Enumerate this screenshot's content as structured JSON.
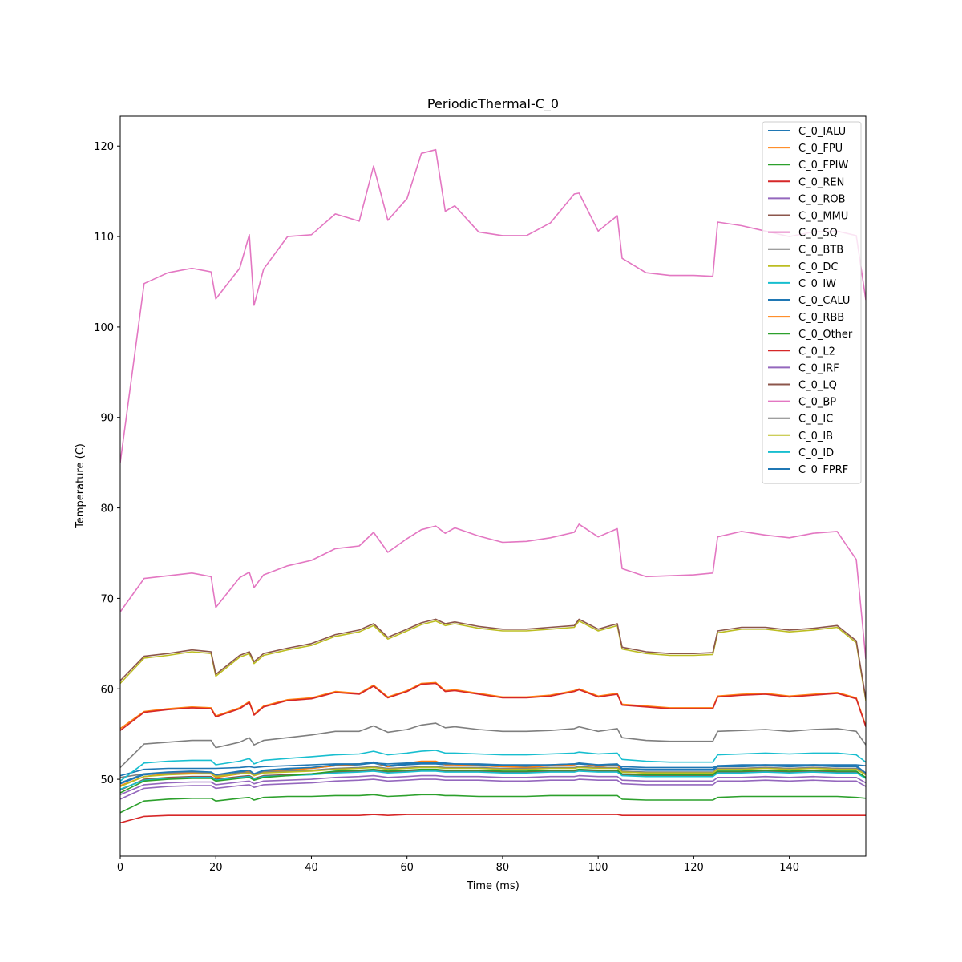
{
  "chart_data": {
    "type": "line",
    "title": "PeriodicThermal-C_0",
    "xlabel": "Time (ms)",
    "ylabel": "Temperature (C)",
    "xlim": [
      0,
      156
    ],
    "ylim": [
      41.5,
      123.3
    ],
    "xticks": [
      0,
      20,
      40,
      60,
      80,
      100,
      120,
      140
    ],
    "yticks": [
      50,
      60,
      70,
      80,
      90,
      100,
      110,
      120
    ],
    "grid": false,
    "legend_position": "top-right",
    "x": [
      0,
      5,
      10,
      15,
      19,
      20,
      25,
      27,
      28,
      30,
      35,
      40,
      45,
      50,
      53,
      56,
      60,
      63,
      66,
      68,
      70,
      75,
      80,
      85,
      90,
      95,
      96,
      100,
      104,
      105,
      110,
      115,
      120,
      124,
      125,
      130,
      135,
      140,
      145,
      150,
      154,
      156
    ],
    "series": [
      {
        "name": "C_0_IALU",
        "color": "#1f77b4",
        "values": [
          49.5,
          50.5,
          50.7,
          50.8,
          50.7,
          50.3,
          50.8,
          50.9,
          50.5,
          50.9,
          51.1,
          51.2,
          51.5,
          51.6,
          51.8,
          51.4,
          51.6,
          51.7,
          51.7,
          51.6,
          51.6,
          51.5,
          51.4,
          51.4,
          51.5,
          51.6,
          51.7,
          51.5,
          51.6,
          51.1,
          51.0,
          51.0,
          51.0,
          51.0,
          51.4,
          51.4,
          51.5,
          51.4,
          51.5,
          51.4,
          51.4,
          50.6
        ]
      },
      {
        "name": "C_0_FPU",
        "color": "#ff7f0e",
        "values": [
          49.3,
          50.3,
          50.6,
          50.7,
          50.6,
          50.2,
          50.6,
          50.9,
          50.4,
          50.8,
          51.0,
          51.2,
          51.5,
          51.7,
          51.9,
          51.4,
          51.8,
          52.0,
          52.0,
          51.6,
          51.6,
          51.5,
          51.4,
          51.3,
          51.5,
          51.6,
          51.8,
          51.4,
          51.6,
          50.8,
          50.7,
          50.6,
          50.6,
          50.6,
          51.2,
          51.2,
          51.3,
          51.2,
          51.3,
          51.2,
          51.1,
          50.5
        ]
      },
      {
        "name": "C_0_FPIW",
        "color": "#2ca02c",
        "values": [
          46.3,
          47.6,
          47.8,
          47.9,
          47.9,
          47.6,
          47.9,
          48.0,
          47.7,
          48.0,
          48.1,
          48.1,
          48.2,
          48.2,
          48.3,
          48.1,
          48.2,
          48.3,
          48.3,
          48.2,
          48.2,
          48.1,
          48.1,
          48.1,
          48.2,
          48.2,
          48.2,
          48.2,
          48.2,
          47.8,
          47.7,
          47.7,
          47.7,
          47.7,
          48.0,
          48.1,
          48.1,
          48.1,
          48.1,
          48.1,
          48.0,
          47.9
        ]
      },
      {
        "name": "C_0_REN",
        "color": "#d62728",
        "values": [
          45.2,
          45.9,
          46.0,
          46.0,
          46.0,
          46.0,
          46.0,
          46.0,
          46.0,
          46.0,
          46.0,
          46.0,
          46.0,
          46.0,
          46.1,
          46.0,
          46.1,
          46.1,
          46.1,
          46.1,
          46.1,
          46.1,
          46.1,
          46.1,
          46.1,
          46.1,
          46.1,
          46.1,
          46.1,
          46.0,
          46.0,
          46.0,
          46.0,
          46.0,
          46.0,
          46.0,
          46.0,
          46.0,
          46.0,
          46.0,
          46.0,
          46.0
        ]
      },
      {
        "name": "C_0_ROB",
        "color": "#9467bd",
        "values": [
          48.3,
          49.4,
          49.6,
          49.7,
          49.7,
          49.4,
          49.7,
          49.8,
          49.5,
          49.8,
          49.9,
          50.0,
          50.2,
          50.3,
          50.4,
          50.2,
          50.3,
          50.4,
          50.4,
          50.3,
          50.3,
          50.3,
          50.2,
          50.2,
          50.3,
          50.3,
          50.4,
          50.3,
          50.3,
          49.9,
          49.8,
          49.8,
          49.8,
          49.8,
          50.2,
          50.2,
          50.3,
          50.2,
          50.3,
          50.2,
          50.2,
          49.6
        ]
      },
      {
        "name": "C_0_MMU",
        "color": "#8c564b",
        "values": [
          48.8,
          50.0,
          50.2,
          50.3,
          50.3,
          50.0,
          50.3,
          50.4,
          50.1,
          50.4,
          50.5,
          50.6,
          50.8,
          50.9,
          51.0,
          50.8,
          50.9,
          51.0,
          51.0,
          50.9,
          50.9,
          50.9,
          50.8,
          50.8,
          50.9,
          50.9,
          51.0,
          50.9,
          50.9,
          50.5,
          50.4,
          50.4,
          50.4,
          50.4,
          50.8,
          50.8,
          50.9,
          50.8,
          50.9,
          50.8,
          50.8,
          50.2
        ]
      },
      {
        "name": "C_0_SQ",
        "color": "#e377c2",
        "values": [
          68.5,
          72.2,
          72.5,
          72.8,
          72.4,
          69.0,
          72.3,
          72.9,
          71.2,
          72.6,
          73.6,
          74.2,
          75.5,
          75.8,
          77.3,
          75.1,
          76.6,
          77.6,
          78.0,
          77.2,
          77.8,
          76.9,
          76.2,
          76.3,
          76.7,
          77.3,
          78.2,
          76.8,
          77.7,
          73.3,
          72.4,
          72.5,
          72.6,
          72.8,
          76.8,
          77.4,
          77.0,
          76.7,
          77.2,
          77.4,
          74.3,
          63.3
        ]
      },
      {
        "name": "C_0_BTB",
        "color": "#7f7f7f",
        "values": [
          50.2,
          50.6,
          50.7,
          50.8,
          50.7,
          50.4,
          50.7,
          50.8,
          50.5,
          50.8,
          50.9,
          51.0,
          51.2,
          51.3,
          51.4,
          51.2,
          51.3,
          51.4,
          51.4,
          51.3,
          51.3,
          51.3,
          51.2,
          51.2,
          51.3,
          51.3,
          51.4,
          51.3,
          51.3,
          50.9,
          50.8,
          50.8,
          50.8,
          50.8,
          51.2,
          51.2,
          51.3,
          51.2,
          51.3,
          51.2,
          51.2,
          50.6
        ]
      },
      {
        "name": "C_0_DC",
        "color": "#bcbd22",
        "values": [
          60.6,
          63.4,
          63.7,
          64.1,
          63.9,
          61.4,
          63.5,
          63.9,
          62.8,
          63.7,
          64.3,
          64.8,
          65.8,
          66.3,
          67.0,
          65.5,
          66.4,
          67.1,
          67.5,
          67.0,
          67.2,
          66.7,
          66.4,
          66.4,
          66.6,
          66.8,
          67.5,
          66.4,
          67.0,
          64.4,
          63.9,
          63.7,
          63.7,
          63.8,
          66.2,
          66.6,
          66.6,
          66.3,
          66.5,
          66.8,
          65.1,
          58.7
        ]
      },
      {
        "name": "C_0_IW",
        "color": "#17becf",
        "values": [
          48.9,
          49.9,
          50.1,
          50.2,
          50.2,
          49.9,
          50.2,
          50.3,
          50.0,
          50.3,
          50.4,
          50.5,
          50.7,
          50.8,
          50.9,
          50.7,
          50.8,
          50.9,
          50.9,
          50.8,
          50.8,
          50.8,
          50.7,
          50.7,
          50.8,
          50.8,
          50.9,
          50.8,
          50.8,
          50.4,
          50.3,
          50.3,
          50.3,
          50.3,
          50.7,
          50.7,
          50.8,
          50.7,
          50.8,
          50.7,
          50.7,
          50.1
        ]
      },
      {
        "name": "C_0_CALU",
        "color": "#1f77b4",
        "values": [
          50.4,
          51.1,
          51.2,
          51.2,
          51.2,
          51.2,
          51.3,
          51.4,
          51.3,
          51.4,
          51.5,
          51.6,
          51.7,
          51.7,
          51.8,
          51.7,
          51.8,
          51.8,
          51.8,
          51.8,
          51.7,
          51.7,
          51.6,
          51.6,
          51.6,
          51.7,
          51.7,
          51.6,
          51.6,
          51.4,
          51.3,
          51.3,
          51.3,
          51.3,
          51.5,
          51.6,
          51.6,
          51.6,
          51.6,
          51.6,
          51.6,
          51.5
        ]
      },
      {
        "name": "C_0_RBB",
        "color": "#ff7f0e",
        "values": [
          55.6,
          57.5,
          57.8,
          58.0,
          57.9,
          57.0,
          57.9,
          58.6,
          57.2,
          58.1,
          58.8,
          59.0,
          59.7,
          59.5,
          60.4,
          59.1,
          59.8,
          60.6,
          60.7,
          59.8,
          59.9,
          59.5,
          59.1,
          59.1,
          59.3,
          59.8,
          60.0,
          59.2,
          59.5,
          58.3,
          58.1,
          57.9,
          57.9,
          57.9,
          59.2,
          59.4,
          59.5,
          59.2,
          59.4,
          59.6,
          59.0,
          55.9
        ]
      },
      {
        "name": "C_0_Other",
        "color": "#2ca02c",
        "values": [
          48.5,
          49.8,
          50.0,
          50.1,
          50.1,
          49.8,
          50.1,
          50.2,
          49.9,
          50.2,
          50.4,
          50.6,
          50.9,
          51.0,
          51.1,
          50.9,
          51.0,
          51.1,
          51.1,
          51.0,
          51.0,
          51.0,
          50.9,
          50.9,
          51.0,
          51.0,
          51.1,
          51.0,
          51.0,
          50.6,
          50.5,
          50.5,
          50.5,
          50.5,
          50.9,
          50.9,
          51.0,
          50.9,
          51.0,
          50.9,
          50.9,
          50.2
        ]
      },
      {
        "name": "C_0_L2",
        "color": "#d62728",
        "values": [
          55.4,
          57.4,
          57.7,
          57.9,
          57.8,
          56.9,
          57.8,
          58.5,
          57.1,
          58.0,
          58.7,
          58.9,
          59.6,
          59.4,
          60.3,
          59.0,
          59.7,
          60.5,
          60.6,
          59.7,
          59.8,
          59.4,
          59.0,
          59.0,
          59.2,
          59.7,
          59.9,
          59.1,
          59.4,
          58.2,
          58.0,
          57.8,
          57.8,
          57.8,
          59.1,
          59.3,
          59.4,
          59.1,
          59.3,
          59.5,
          58.9,
          55.8
        ]
      },
      {
        "name": "C_0_IRF",
        "color": "#9467bd",
        "values": [
          47.8,
          49.0,
          49.2,
          49.3,
          49.3,
          49.0,
          49.3,
          49.4,
          49.1,
          49.4,
          49.5,
          49.6,
          49.8,
          49.9,
          50.0,
          49.8,
          49.9,
          50.0,
          50.0,
          49.9,
          49.9,
          49.9,
          49.8,
          49.8,
          49.9,
          49.9,
          50.0,
          49.9,
          49.9,
          49.5,
          49.4,
          49.4,
          49.4,
          49.4,
          49.8,
          49.8,
          49.9,
          49.8,
          49.9,
          49.8,
          49.8,
          49.2
        ]
      },
      {
        "name": "C_0_LQ",
        "color": "#8c564b",
        "values": [
          60.9,
          63.6,
          63.9,
          64.3,
          64.1,
          61.6,
          63.7,
          64.1,
          63.0,
          63.9,
          64.5,
          65.0,
          66.0,
          66.5,
          67.2,
          65.7,
          66.6,
          67.3,
          67.7,
          67.2,
          67.4,
          66.9,
          66.6,
          66.6,
          66.8,
          67.0,
          67.7,
          66.6,
          67.2,
          64.6,
          64.1,
          63.9,
          63.9,
          64.0,
          66.4,
          66.8,
          66.8,
          66.5,
          66.7,
          67.0,
          65.3,
          58.9
        ]
      },
      {
        "name": "C_0_BP",
        "color": "#e377c2",
        "values": [
          85.0,
          104.8,
          106.0,
          106.5,
          106.1,
          103.1,
          106.5,
          110.2,
          102.4,
          106.4,
          110.0,
          110.2,
          112.5,
          111.7,
          117.8,
          111.8,
          114.2,
          119.2,
          119.6,
          112.8,
          113.4,
          110.5,
          110.1,
          110.1,
          111.5,
          114.7,
          114.8,
          110.6,
          112.3,
          107.6,
          106.0,
          105.7,
          105.7,
          105.6,
          111.6,
          111.2,
          110.6,
          110.0,
          110.5,
          110.6,
          110.1,
          103.0
        ]
      },
      {
        "name": "C_0_IC",
        "color": "#7f7f7f",
        "values": [
          51.3,
          53.9,
          54.1,
          54.3,
          54.3,
          53.5,
          54.1,
          54.6,
          53.8,
          54.3,
          54.6,
          54.9,
          55.3,
          55.3,
          55.9,
          55.2,
          55.5,
          56.0,
          56.2,
          55.7,
          55.8,
          55.5,
          55.3,
          55.3,
          55.4,
          55.6,
          55.8,
          55.3,
          55.6,
          54.6,
          54.3,
          54.2,
          54.2,
          54.2,
          55.3,
          55.4,
          55.5,
          55.3,
          55.5,
          55.6,
          55.3,
          53.8
        ]
      },
      {
        "name": "C_0_IB",
        "color": "#bcbd22",
        "values": [
          49.2,
          50.3,
          50.5,
          50.6,
          50.6,
          50.3,
          50.6,
          50.7,
          50.4,
          50.7,
          50.8,
          50.9,
          51.1,
          51.2,
          51.3,
          51.1,
          51.2,
          51.3,
          51.3,
          51.2,
          51.2,
          51.2,
          51.1,
          51.1,
          51.2,
          51.2,
          51.3,
          51.2,
          51.2,
          50.8,
          50.7,
          50.7,
          50.7,
          50.7,
          51.1,
          51.1,
          51.2,
          51.1,
          51.2,
          51.1,
          51.1,
          50.5
        ]
      },
      {
        "name": "C_0_ID",
        "color": "#17becf",
        "values": [
          49.8,
          51.8,
          52.0,
          52.1,
          52.1,
          51.6,
          52.0,
          52.3,
          51.7,
          52.1,
          52.3,
          52.5,
          52.7,
          52.8,
          53.1,
          52.7,
          52.9,
          53.1,
          53.2,
          52.9,
          52.9,
          52.8,
          52.7,
          52.7,
          52.8,
          52.9,
          53.0,
          52.8,
          52.9,
          52.2,
          52.0,
          51.9,
          51.9,
          51.9,
          52.7,
          52.8,
          52.9,
          52.8,
          52.9,
          52.9,
          52.7,
          51.9
        ]
      },
      {
        "name": "C_0_FPRF",
        "color": "#1f77b4",
        "values": [
          49.6,
          50.6,
          50.8,
          50.9,
          50.8,
          50.5,
          50.9,
          51.0,
          50.6,
          51.0,
          51.2,
          51.3,
          51.6,
          51.7,
          51.9,
          51.5,
          51.7,
          51.8,
          51.8,
          51.7,
          51.7,
          51.6,
          51.5,
          51.5,
          51.6,
          51.7,
          51.8,
          51.6,
          51.7,
          51.2,
          51.1,
          51.1,
          51.1,
          51.1,
          51.5,
          51.5,
          51.6,
          51.5,
          51.6,
          51.5,
          51.5,
          50.7
        ]
      }
    ]
  }
}
